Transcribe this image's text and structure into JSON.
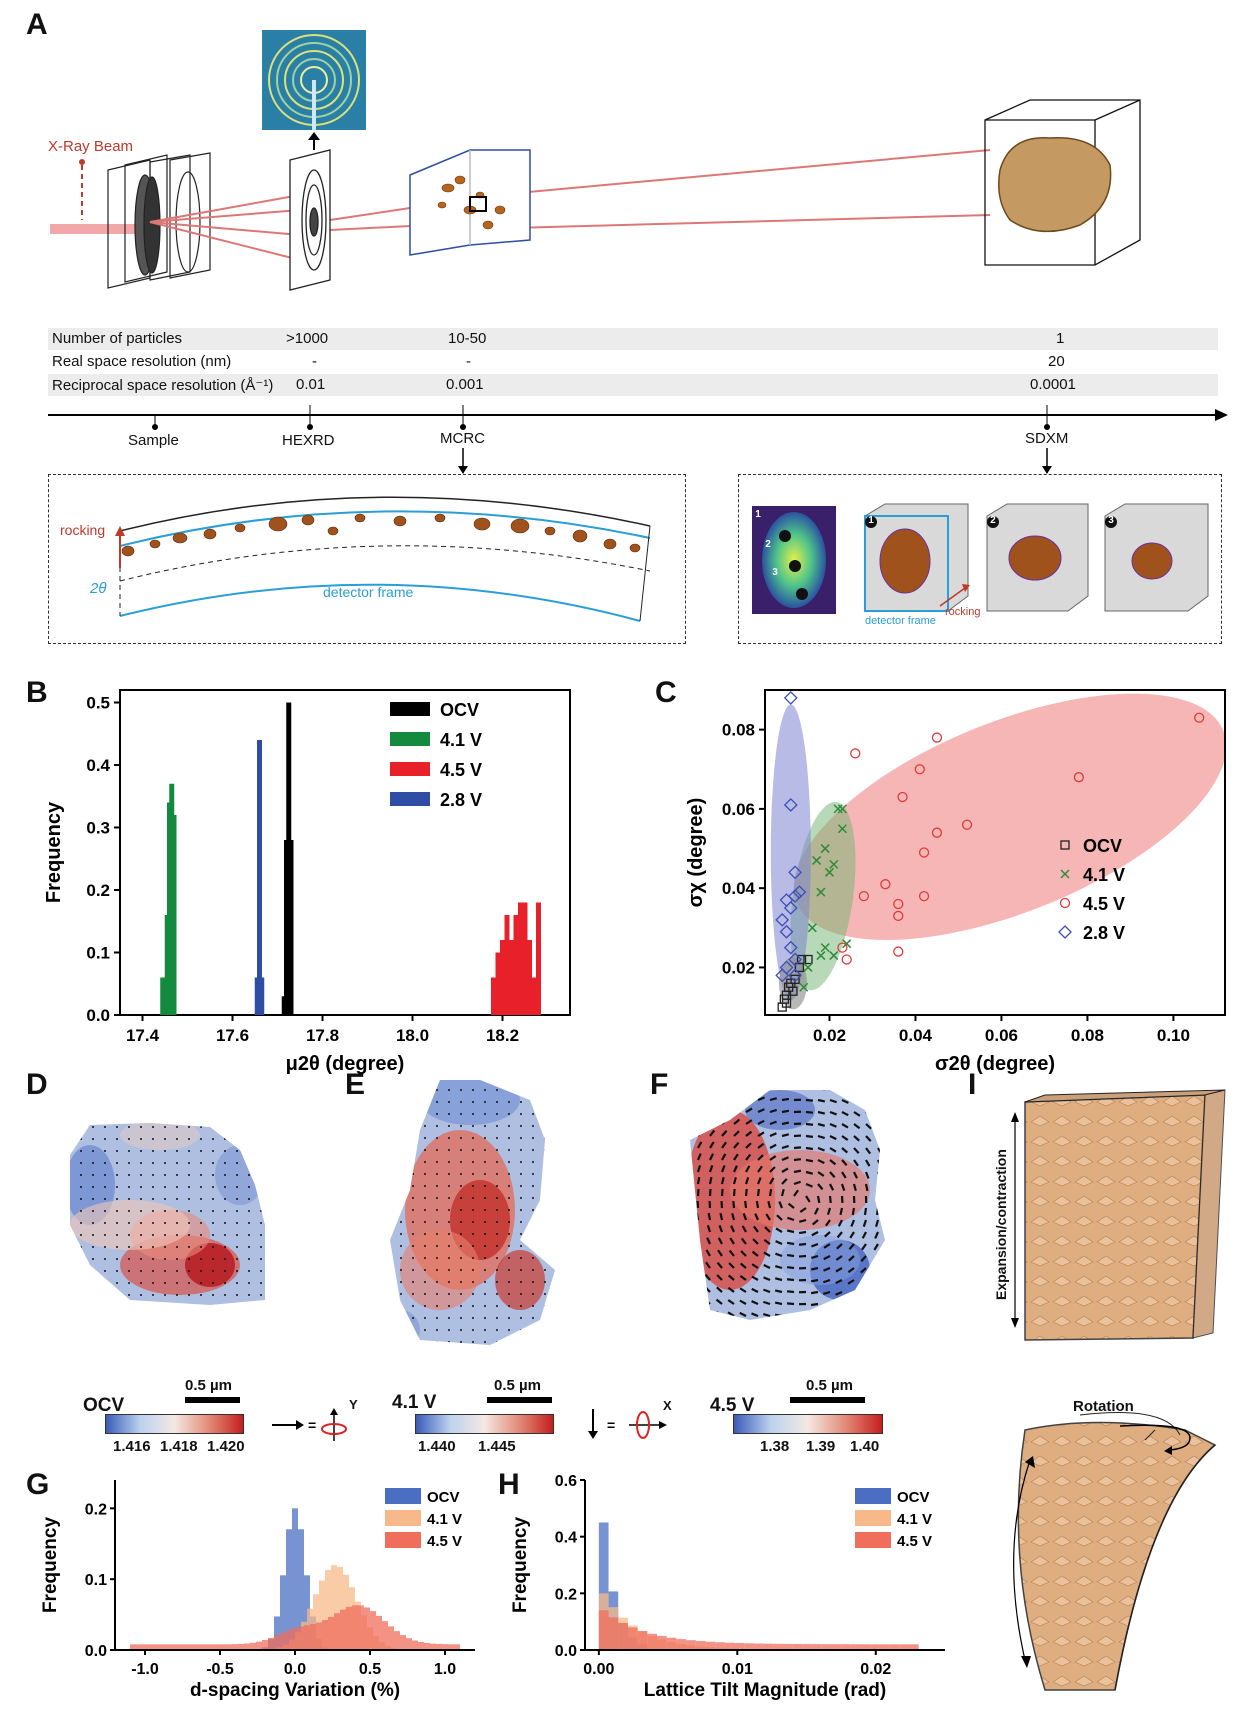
{
  "panelA": {
    "label": "A",
    "beam_label": "X-Ray Beam",
    "table": {
      "rows": [
        {
          "name": "Number of particles",
          "hexrd": ">1000",
          "mcrc": "10-50",
          "sdxm": "1"
        },
        {
          "name": "Real space resolution (nm)",
          "hexrd": "-",
          "mcrc": "-",
          "sdxm": "20"
        },
        {
          "name": "Reciprocal space resolution (Å⁻¹)",
          "hexrd": "0.01",
          "mcrc": "0.001",
          "sdxm": "0.0001"
        }
      ]
    },
    "axis_points": [
      "Sample",
      "HEXRD",
      "MCRC",
      "SDXM"
    ],
    "mcrc_box": {
      "rocking": "rocking",
      "two_theta": "2θ",
      "detector_frame": "detector frame"
    },
    "sdxm_box": {
      "points": [
        "1",
        "2",
        "3"
      ],
      "detector_frame": "detector frame",
      "rocking": "rocking"
    }
  },
  "panelB": {
    "label": "B",
    "chart_data": {
      "type": "bar",
      "xlabel": "μ2θ (degree)",
      "ylabel": "Frequency",
      "xlim": [
        17.35,
        18.35
      ],
      "ylim": [
        0,
        0.52
      ],
      "xticks": [
        "17.4",
        "17.6",
        "17.8",
        "18.0",
        "18.2"
      ],
      "yticks": [
        "0.0",
        "0.1",
        "0.2",
        "0.3",
        "0.4",
        "0.5"
      ],
      "legend": "top-right",
      "series": [
        {
          "name": "OCV",
          "color": "#000000",
          "x": [
            17.715,
            17.72,
            17.725,
            17.73
          ],
          "values": [
            0.03,
            0.28,
            0.5,
            0.28
          ]
        },
        {
          "name": "4.1 V",
          "color": "#138a3e",
          "x": [
            17.445,
            17.45,
            17.455,
            17.46,
            17.465,
            17.47
          ],
          "values": [
            0.06,
            0.06,
            0.16,
            0.34,
            0.37,
            0.32
          ]
        },
        {
          "name": "4.5 V",
          "color": "#e8202a",
          "x": [
            18.18,
            18.19,
            18.2,
            18.21,
            18.22,
            18.23,
            18.24,
            18.25,
            18.26,
            18.27,
            18.28
          ],
          "values": [
            0.06,
            0.1,
            0.12,
            0.16,
            0.12,
            0.16,
            0.18,
            0.18,
            0.12,
            0.06,
            0.18
          ]
        },
        {
          "name": "2.8 V",
          "color": "#2e4ea6",
          "x": [
            17.655,
            17.66,
            17.665
          ],
          "values": [
            0.06,
            0.44,
            0.06
          ]
        }
      ]
    }
  },
  "panelC": {
    "label": "C",
    "chart_data": {
      "type": "scatter",
      "xlabel": "σ2θ (degree)",
      "ylabel": "σχ (degree)",
      "xlim": [
        0.005,
        0.112
      ],
      "ylim": [
        0.008,
        0.09
      ],
      "xticks": [
        "0.02",
        "0.04",
        "0.06",
        "0.08",
        "0.10"
      ],
      "yticks": [
        "0.02",
        "0.04",
        "0.06",
        "0.08"
      ],
      "legend": "right",
      "series": [
        {
          "name": "OCV",
          "marker": "square",
          "color": "#222222",
          "points": [
            [
              0.009,
              0.01
            ],
            [
              0.0095,
              0.012
            ],
            [
              0.01,
              0.013
            ],
            [
              0.0105,
              0.015
            ],
            [
              0.011,
              0.016
            ],
            [
              0.012,
              0.017
            ],
            [
              0.013,
              0.02
            ],
            [
              0.0135,
              0.022
            ],
            [
              0.015,
              0.022
            ],
            [
              0.01,
              0.011
            ],
            [
              0.0115,
              0.014
            ]
          ]
        },
        {
          "name": "4.1 V",
          "marker": "x",
          "color": "#2f8a3a",
          "points": [
            [
              0.017,
              0.047
            ],
            [
              0.018,
              0.039
            ],
            [
              0.019,
              0.05
            ],
            [
              0.02,
              0.044
            ],
            [
              0.021,
              0.046
            ],
            [
              0.022,
              0.06
            ],
            [
              0.023,
              0.06
            ],
            [
              0.023,
              0.055
            ],
            [
              0.018,
              0.023
            ],
            [
              0.015,
              0.02
            ],
            [
              0.016,
              0.03
            ],
            [
              0.019,
              0.025
            ],
            [
              0.024,
              0.026
            ],
            [
              0.014,
              0.015
            ],
            [
              0.021,
              0.023
            ]
          ]
        },
        {
          "name": "4.5 V",
          "marker": "circle",
          "color": "#e03a3a",
          "points": [
            [
              0.026,
              0.074
            ],
            [
              0.028,
              0.038
            ],
            [
              0.024,
              0.022
            ],
            [
              0.033,
              0.041
            ],
            [
              0.036,
              0.036
            ],
            [
              0.036,
              0.033
            ],
            [
              0.036,
              0.024
            ],
            [
              0.037,
              0.063
            ],
            [
              0.041,
              0.07
            ],
            [
              0.042,
              0.049
            ],
            [
              0.042,
              0.038
            ],
            [
              0.045,
              0.054
            ],
            [
              0.045,
              0.078
            ],
            [
              0.052,
              0.056
            ],
            [
              0.078,
              0.068
            ],
            [
              0.106,
              0.083
            ],
            [
              0.023,
              0.025
            ]
          ]
        },
        {
          "name": "2.8 V",
          "marker": "diamond",
          "color": "#3b50b8",
          "points": [
            [
              0.011,
              0.088
            ],
            [
              0.011,
              0.061
            ],
            [
              0.012,
              0.044
            ],
            [
              0.01,
              0.037
            ],
            [
              0.011,
              0.035
            ],
            [
              0.012,
              0.038
            ],
            [
              0.009,
              0.032
            ],
            [
              0.01,
              0.029
            ],
            [
              0.011,
              0.025
            ],
            [
              0.012,
              0.022
            ],
            [
              0.009,
              0.018
            ],
            [
              0.01,
              0.02
            ],
            [
              0.012,
              0.018
            ],
            [
              0.013,
              0.039
            ]
          ]
        }
      ]
    }
  },
  "panelD": {
    "label": "D",
    "state": "OCV",
    "scale": "0.5 µm",
    "cb_ticks": [
      "1.416",
      "1.418",
      "1.420"
    ]
  },
  "panelE": {
    "label": "E",
    "state": "4.1 V",
    "scale": "0.5 µm",
    "cb_ticks": [
      "1.440",
      "1.445"
    ]
  },
  "panelF": {
    "label": "F",
    "state": "4.5 V",
    "scale": "0.5 µm",
    "cb_ticks": [
      "1.38",
      "1.39",
      "1.40"
    ]
  },
  "rotation_keys": {
    "y": "Y",
    "x": "X"
  },
  "panelI": {
    "label": "I",
    "expansion": "Expansion/contraction",
    "rotation": "Rotation"
  },
  "panelG": {
    "label": "G",
    "chart_data": {
      "type": "bar",
      "xlabel": "d-spacing Variation (%)",
      "ylabel": "Frequency",
      "xlim": [
        -1.2,
        1.2
      ],
      "ylim": [
        0,
        0.24
      ],
      "xticks": [
        "-1.0",
        "-0.5",
        "0.0",
        "0.5",
        "1.0"
      ],
      "yticks": [
        "0.0",
        "0.1",
        "0.2"
      ],
      "legend": "top-right",
      "series": [
        {
          "name": "OCV",
          "color": "#4a6fc2"
        },
        {
          "name": "4.1 V",
          "color": "#f7b98a"
        },
        {
          "name": "4.5 V",
          "color": "#ef6e5c"
        }
      ]
    }
  },
  "panelH": {
    "label": "H",
    "chart_data": {
      "type": "bar",
      "xlabel": "Lattice Tilt Magnitude (rad)",
      "ylabel": "Frequency",
      "xlim": [
        -0.001,
        0.025
      ],
      "ylim": [
        0,
        0.6
      ],
      "xticks": [
        "0.00",
        "0.01",
        "0.02"
      ],
      "yticks": [
        "0.0",
        "0.2",
        "0.4",
        "0.6"
      ],
      "legend": "top-right",
      "series": [
        {
          "name": "OCV",
          "color": "#4a6fc2"
        },
        {
          "name": "4.1 V",
          "color": "#f7b98a"
        },
        {
          "name": "4.5 V",
          "color": "#ef6e5c"
        }
      ]
    }
  }
}
